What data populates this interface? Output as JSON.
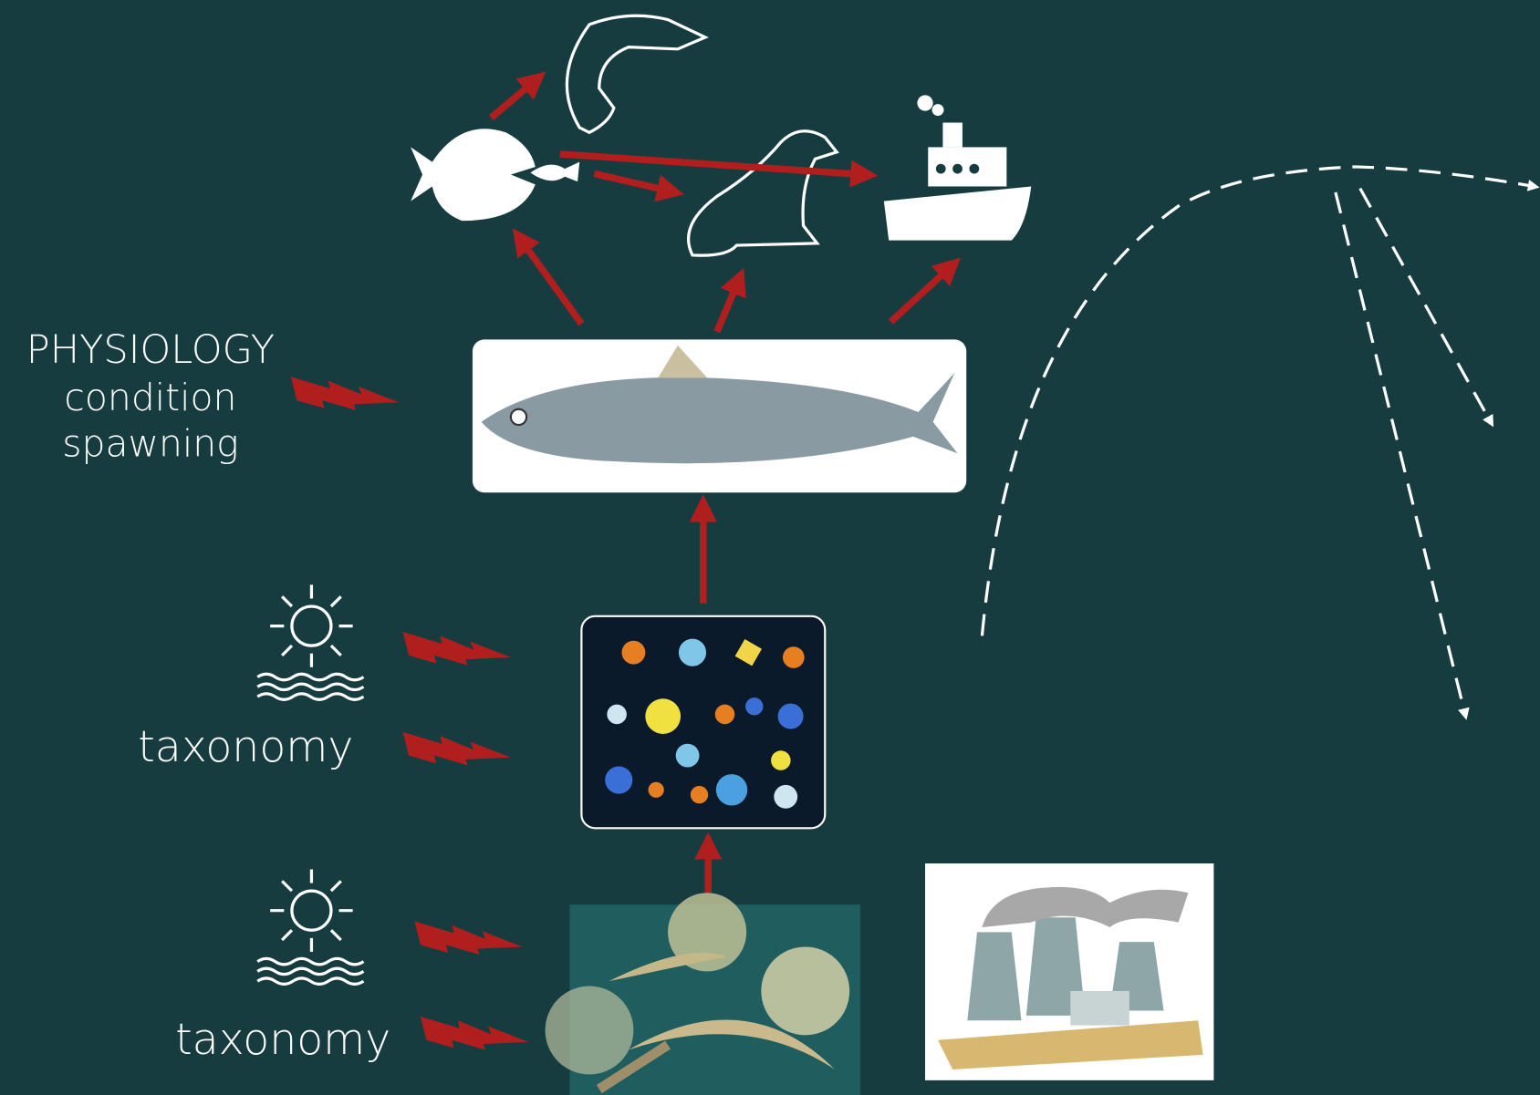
{
  "physiology": {
    "title": "PHYSIOLOGY",
    "items": [
      "condition",
      "spawning"
    ]
  },
  "taxonomy_labels": [
    "taxonomy",
    "taxonomy"
  ]
}
